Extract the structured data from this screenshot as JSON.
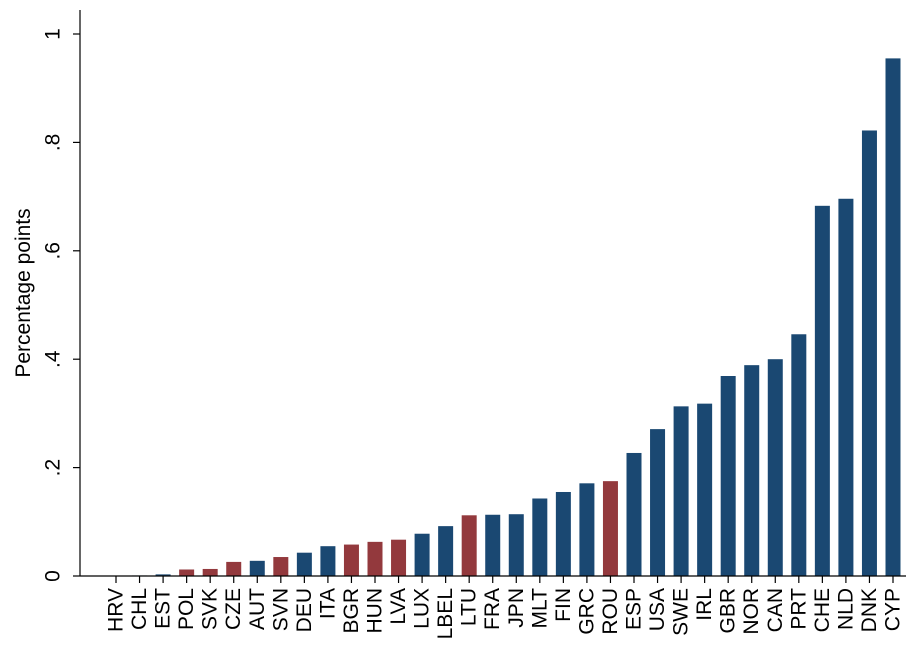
{
  "chart_data": {
    "type": "bar",
    "title": "",
    "xlabel": "",
    "ylabel": "Percentage points",
    "ylim": [
      0,
      1
    ],
    "yticks": [
      0,
      0.2,
      0.4,
      0.6,
      0.8,
      1
    ],
    "ytick_labels": [
      "0",
      ".2",
      ".4",
      ".6",
      ".8",
      "1"
    ],
    "grid": false,
    "legend": "none",
    "colors": {
      "blue": "#1a4872",
      "red": "#93393d",
      "axis": "#000000"
    },
    "categories": [
      "HRV",
      "CHL",
      "EST",
      "POL",
      "SVK",
      "CZE",
      "AUT",
      "SVN",
      "DEU",
      "ITA",
      "BGR",
      "HUN",
      "LVA",
      "LUX",
      "LBEL",
      "LTU",
      "FRA",
      "JPN",
      "MLT",
      "FIN",
      "GRC",
      "ROU",
      "ESP",
      "USA",
      "SWE",
      "IRL",
      "GBR",
      "NOR",
      "CAN",
      "PRT",
      "CHE",
      "NLD",
      "DNK",
      "CYP"
    ],
    "values": [
      0.0005,
      0.001,
      0.003,
      0.012,
      0.013,
      0.026,
      0.028,
      0.035,
      0.043,
      0.055,
      0.058,
      0.063,
      0.067,
      0.078,
      0.092,
      0.112,
      0.113,
      0.114,
      0.143,
      0.155,
      0.171,
      0.175,
      0.227,
      0.271,
      0.313,
      0.318,
      0.369,
      0.389,
      0.4,
      0.446,
      0.683,
      0.696,
      0.822,
      0.955
    ],
    "bar_colors": [
      "blue",
      "blue",
      "blue",
      "red",
      "red",
      "red",
      "blue",
      "red",
      "blue",
      "blue",
      "red",
      "red",
      "red",
      "blue",
      "blue",
      "red",
      "blue",
      "blue",
      "blue",
      "blue",
      "blue",
      "red",
      "blue",
      "blue",
      "blue",
      "blue",
      "blue",
      "blue",
      "blue",
      "blue",
      "blue",
      "blue",
      "blue",
      "blue"
    ]
  }
}
